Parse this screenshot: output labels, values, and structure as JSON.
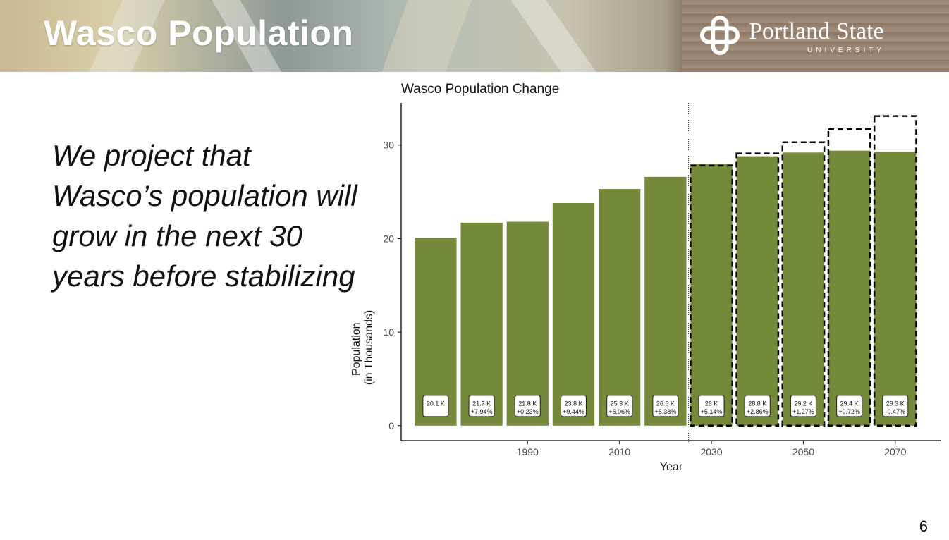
{
  "slide": {
    "title": "Wasco Population",
    "body_text": "We project that Wasco’s population will grow in the next 30 years before stabilizing",
    "page_number": "6",
    "logo": {
      "name": "Portland State",
      "subtitle": "UNIVERSITY"
    }
  },
  "colors": {
    "bar": "#74893a",
    "title_text": "#ffffff"
  },
  "chart_data": {
    "type": "bar",
    "title": "Wasco Population Change",
    "xlabel": "Year",
    "ylabel_lines": [
      "Population",
      "(in Thousands)"
    ],
    "x": [
      1970,
      1980,
      1990,
      2000,
      2010,
      2020,
      2030,
      2040,
      2050,
      2060,
      2070
    ],
    "values": [
      20.1,
      21.7,
      21.8,
      23.8,
      25.3,
      26.6,
      28,
      28.8,
      29.2,
      29.4,
      29.3
    ],
    "projected_upper": [
      null,
      null,
      null,
      null,
      null,
      null,
      27.8,
      29.1,
      30.3,
      31.7,
      33.1
    ],
    "value_labels": [
      "20.1 K",
      "21.7 K",
      "21.8 K",
      "23.8 K",
      "25.3 K",
      "26.6 K",
      "28 K",
      "28.8 K",
      "29.2 K",
      "29.4 K",
      "29.3 K"
    ],
    "change_labels": [
      "",
      "+7.94%",
      "+0.23%",
      "+9.44%",
      "+6.06%",
      "+5.38%",
      "+5.14%",
      "+2.86%",
      "+1.27%",
      "+0.72%",
      "-0.47%"
    ],
    "x_ticks": [
      1990,
      2010,
      2030,
      2050,
      2070
    ],
    "y_ticks": [
      0,
      10,
      20,
      30
    ],
    "ylim": [
      -1.6,
      34.5
    ],
    "xlim": [
      1962.5,
      2080
    ],
    "projection_start_year": 2025,
    "grid": false,
    "legend": "none"
  }
}
